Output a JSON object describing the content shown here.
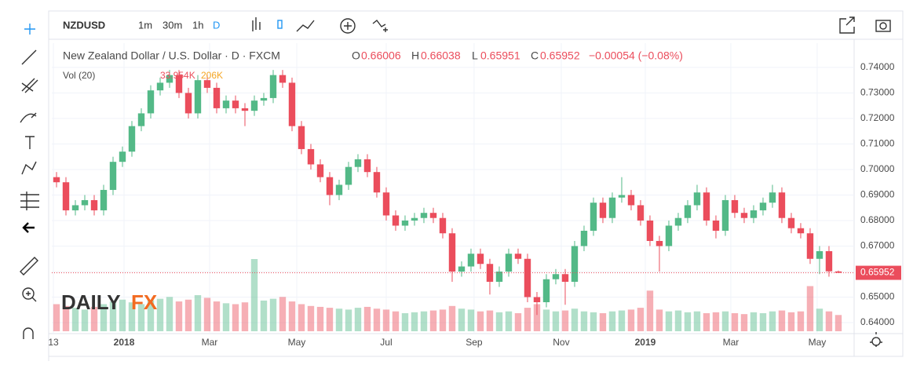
{
  "toolbar": {
    "symbol": "NZDUSD",
    "intervals": [
      "1m",
      "30m",
      "1h",
      "D"
    ]
  },
  "legend": {
    "title": "New Zealand Dollar / U.S. Dollar · D · FXCM",
    "open": "0.66006",
    "high": "0.66038",
    "low": "0.65951",
    "close": "0.65952",
    "change": "−0.00054 (−0.08%)",
    "volume_title": "Vol (20)",
    "volume_values": [
      "33.954K",
      "206K"
    ]
  },
  "logo": [
    "DAILY",
    "FX"
  ],
  "chart_data": {
    "type": "candlestick",
    "up_color": "#53b987",
    "down_color": "#eb4d5c",
    "last_price": {
      "value": 0.65952,
      "label": "0.65952"
    },
    "xlim": [
      -0.5,
      84.67
    ],
    "xticks": [
      {
        "value": -0.33,
        "label": "13"
      },
      {
        "value": 7.17,
        "label": "2018"
      },
      {
        "value": 16.25,
        "label": "Mar"
      },
      {
        "value": 25.5,
        "label": "May"
      },
      {
        "value": 35,
        "label": "Jul"
      },
      {
        "value": 44.33,
        "label": "Sep"
      },
      {
        "value": 53.58,
        "label": "Nov"
      },
      {
        "value": 62.5,
        "label": "2019"
      },
      {
        "value": 71.58,
        "label": "Mar"
      },
      {
        "value": 80.75,
        "label": "May"
      }
    ],
    "ylim": [
      0.6357,
      0.7495
    ],
    "yticks": [
      {
        "value": 0.64,
        "label": "0.64000"
      },
      {
        "value": 0.65,
        "label": "0.65000"
      },
      {
        "value": 0.66,
        "label": "0.66000"
      },
      {
        "value": 0.67,
        "label": "0.67000"
      },
      {
        "value": 0.68,
        "label": "0.68000"
      },
      {
        "value": 0.69,
        "label": "0.69000"
      },
      {
        "value": 0.7,
        "label": "0.70000"
      },
      {
        "value": 0.71,
        "label": "0.71000"
      },
      {
        "value": 0.72,
        "label": "0.72000"
      },
      {
        "value": 0.73,
        "label": "0.73000"
      },
      {
        "value": 0.74,
        "label": "0.74000"
      }
    ],
    "grid": true,
    "candles": [
      [
        0.697,
        0.699,
        0.693,
        0.695
      ],
      [
        0.695,
        0.697,
        0.682,
        0.684
      ],
      [
        0.684,
        0.688,
        0.682,
        0.686
      ],
      [
        0.686,
        0.69,
        0.684,
        0.688
      ],
      [
        0.688,
        0.69,
        0.682,
        0.684
      ],
      [
        0.684,
        0.694,
        0.682,
        0.692
      ],
      [
        0.692,
        0.705,
        0.69,
        0.703
      ],
      [
        0.703,
        0.709,
        0.701,
        0.707
      ],
      [
        0.707,
        0.719,
        0.705,
        0.717
      ],
      [
        0.717,
        0.724,
        0.715,
        0.722
      ],
      [
        0.722,
        0.733,
        0.72,
        0.731
      ],
      [
        0.731,
        0.736,
        0.729,
        0.734
      ],
      [
        0.734,
        0.739,
        0.732,
        0.737
      ],
      [
        0.737,
        0.739,
        0.728,
        0.73
      ],
      [
        0.73,
        0.732,
        0.72,
        0.722
      ],
      [
        0.722,
        0.737,
        0.72,
        0.735
      ],
      [
        0.735,
        0.737,
        0.73,
        0.732
      ],
      [
        0.732,
        0.734,
        0.722,
        0.724
      ],
      [
        0.724,
        0.729,
        0.722,
        0.727
      ],
      [
        0.727,
        0.729,
        0.722,
        0.724
      ],
      [
        0.724,
        0.726,
        0.717,
        0.723
      ],
      [
        0.723,
        0.729,
        0.721,
        0.727
      ],
      [
        0.727,
        0.73,
        0.725,
        0.728
      ],
      [
        0.728,
        0.739,
        0.726,
        0.737
      ],
      [
        0.737,
        0.739,
        0.732,
        0.734
      ],
      [
        0.734,
        0.736,
        0.715,
        0.717
      ],
      [
        0.717,
        0.719,
        0.706,
        0.708
      ],
      [
        0.708,
        0.71,
        0.7,
        0.702
      ],
      [
        0.702,
        0.704,
        0.695,
        0.697
      ],
      [
        0.697,
        0.699,
        0.686,
        0.69
      ],
      [
        0.69,
        0.696,
        0.688,
        0.694
      ],
      [
        0.694,
        0.703,
        0.692,
        0.701
      ],
      [
        0.701,
        0.706,
        0.699,
        0.704
      ],
      [
        0.704,
        0.706,
        0.697,
        0.699
      ],
      [
        0.699,
        0.701,
        0.689,
        0.691
      ],
      [
        0.691,
        0.693,
        0.68,
        0.682
      ],
      [
        0.682,
        0.684,
        0.676,
        0.678
      ],
      [
        0.678,
        0.682,
        0.676,
        0.68
      ],
      [
        0.68,
        0.683,
        0.678,
        0.681
      ],
      [
        0.681,
        0.685,
        0.679,
        0.683
      ],
      [
        0.683,
        0.685,
        0.679,
        0.681
      ],
      [
        0.681,
        0.683,
        0.673,
        0.675
      ],
      [
        0.675,
        0.677,
        0.656,
        0.66
      ],
      [
        0.66,
        0.664,
        0.658,
        0.662
      ],
      [
        0.662,
        0.669,
        0.66,
        0.667
      ],
      [
        0.667,
        0.669,
        0.661,
        0.663
      ],
      [
        0.663,
        0.665,
        0.651,
        0.656
      ],
      [
        0.656,
        0.662,
        0.654,
        0.66
      ],
      [
        0.66,
        0.669,
        0.658,
        0.667
      ],
      [
        0.667,
        0.669,
        0.663,
        0.665
      ],
      [
        0.665,
        0.667,
        0.648,
        0.65
      ],
      [
        0.65,
        0.652,
        0.643,
        0.648
      ],
      [
        0.648,
        0.659,
        0.646,
        0.657
      ],
      [
        0.657,
        0.661,
        0.655,
        0.659
      ],
      [
        0.659,
        0.661,
        0.647,
        0.656
      ],
      [
        0.656,
        0.672,
        0.654,
        0.67
      ],
      [
        0.67,
        0.678,
        0.668,
        0.676
      ],
      [
        0.676,
        0.689,
        0.674,
        0.687
      ],
      [
        0.687,
        0.689,
        0.679,
        0.681
      ],
      [
        0.681,
        0.691,
        0.679,
        0.689
      ],
      [
        0.689,
        0.697,
        0.687,
        0.69
      ],
      [
        0.69,
        0.692,
        0.684,
        0.686
      ],
      [
        0.686,
        0.688,
        0.678,
        0.68
      ],
      [
        0.68,
        0.682,
        0.67,
        0.672
      ],
      [
        0.672,
        0.674,
        0.66,
        0.67
      ],
      [
        0.67,
        0.68,
        0.668,
        0.678
      ],
      [
        0.678,
        0.683,
        0.676,
        0.681
      ],
      [
        0.681,
        0.688,
        0.679,
        0.686
      ],
      [
        0.686,
        0.694,
        0.684,
        0.691
      ],
      [
        0.691,
        0.693,
        0.678,
        0.68
      ],
      [
        0.68,
        0.682,
        0.673,
        0.676
      ],
      [
        0.676,
        0.69,
        0.674,
        0.688
      ],
      [
        0.688,
        0.69,
        0.681,
        0.683
      ],
      [
        0.683,
        0.685,
        0.679,
        0.681
      ],
      [
        0.681,
        0.686,
        0.679,
        0.684
      ],
      [
        0.684,
        0.689,
        0.682,
        0.687
      ],
      [
        0.687,
        0.694,
        0.685,
        0.691
      ],
      [
        0.691,
        0.693,
        0.679,
        0.681
      ],
      [
        0.681,
        0.683,
        0.675,
        0.677
      ],
      [
        0.677,
        0.679,
        0.673,
        0.675
      ],
      [
        0.675,
        0.677,
        0.663,
        0.665
      ],
      [
        0.665,
        0.67,
        0.659,
        0.668
      ],
      [
        0.668,
        0.67,
        0.658,
        0.6601
      ],
      [
        0.66006,
        0.66038,
        0.65951,
        0.65952
      ]
    ],
    "volumes": [
      30,
      28,
      26,
      24,
      27,
      30,
      33,
      35,
      32,
      30,
      34,
      36,
      38,
      33,
      35,
      40,
      37,
      33,
      31,
      30,
      32,
      80,
      34,
      36,
      38,
      33,
      30,
      28,
      27,
      26,
      25,
      24,
      26,
      27,
      25,
      24,
      22,
      20,
      21,
      22,
      23,
      24,
      28,
      25,
      24,
      22,
      23,
      21,
      22,
      20,
      26,
      30,
      24,
      22,
      23,
      25,
      22,
      21,
      20,
      22,
      23,
      24,
      26,
      45,
      24,
      22,
      23,
      21,
      22,
      20,
      21,
      22,
      20,
      19,
      21,
      20,
      22,
      23,
      21,
      22,
      50,
      25,
      22,
      18
    ]
  }
}
